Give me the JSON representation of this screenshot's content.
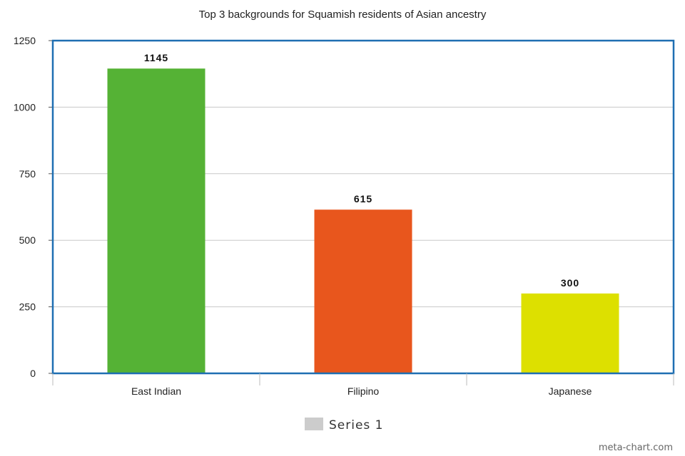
{
  "chart_data": {
    "type": "bar",
    "title": "Top 3 backgrounds for Squamish residents of Asian ancestry",
    "categories": [
      "East Indian",
      "Filipino",
      "Japanese"
    ],
    "series": [
      {
        "name": "Series 1",
        "values": [
          1145,
          615,
          300
        ]
      }
    ],
    "colors": [
      "#55b235",
      "#e8561d",
      "#dde000"
    ],
    "data_labels": [
      "1145",
      "615",
      "300"
    ],
    "yticks": [
      0,
      250,
      500,
      750,
      1000,
      1250
    ],
    "ylim": [
      0,
      1250
    ],
    "xlabel": "",
    "ylabel": "",
    "grid": true,
    "legend_position": "bottom-center",
    "frame_color": "#1f6fb2",
    "grid_color": "#c8c8c8",
    "legend_swatch_color": "#cccccc"
  },
  "credit": "meta-chart.com"
}
